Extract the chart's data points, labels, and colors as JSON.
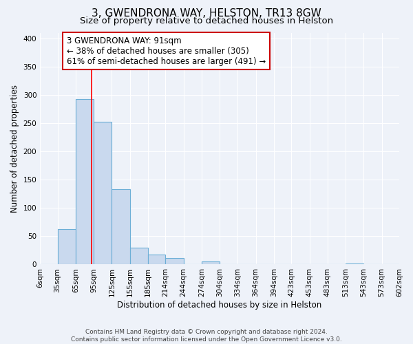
{
  "title": "3, GWENDRONA WAY, HELSTON, TR13 8GW",
  "subtitle": "Size of property relative to detached houses in Helston",
  "xlabel": "Distribution of detached houses by size in Helston",
  "ylabel": "Number of detached properties",
  "bar_edges": [
    6,
    35,
    65,
    95,
    125,
    155,
    185,
    214,
    244,
    274,
    304,
    334,
    364,
    394,
    423,
    453,
    483,
    513,
    543,
    573,
    602
  ],
  "bar_values": [
    0,
    63,
    293,
    253,
    133,
    30,
    18,
    12,
    0,
    5,
    0,
    0,
    0,
    0,
    0,
    0,
    0,
    2,
    0,
    0
  ],
  "bar_color": "#c9d9ee",
  "bar_edge_color": "#6baed6",
  "bar_linewidth": 0.8,
  "red_line_x": 91,
  "ylim": [
    0,
    410
  ],
  "yticks": [
    0,
    50,
    100,
    150,
    200,
    250,
    300,
    350,
    400
  ],
  "tick_labels": [
    "6sqm",
    "35sqm",
    "65sqm",
    "95sqm",
    "125sqm",
    "155sqm",
    "185sqm",
    "214sqm",
    "244sqm",
    "274sqm",
    "304sqm",
    "334sqm",
    "364sqm",
    "394sqm",
    "423sqm",
    "453sqm",
    "483sqm",
    "513sqm",
    "543sqm",
    "573sqm",
    "602sqm"
  ],
  "annotation_box_text": "3 GWENDRONA WAY: 91sqm\n← 38% of detached houses are smaller (305)\n61% of semi-detached houses are larger (491) →",
  "footer_line1": "Contains HM Land Registry data © Crown copyright and database right 2024.",
  "footer_line2": "Contains public sector information licensed under the Open Government Licence v3.0.",
  "background_color": "#eef2f9",
  "grid_color": "#ffffff",
  "title_fontsize": 11,
  "subtitle_fontsize": 9.5,
  "axis_label_fontsize": 8.5,
  "tick_fontsize": 7.5,
  "annotation_fontsize": 8.5,
  "footer_fontsize": 6.5
}
